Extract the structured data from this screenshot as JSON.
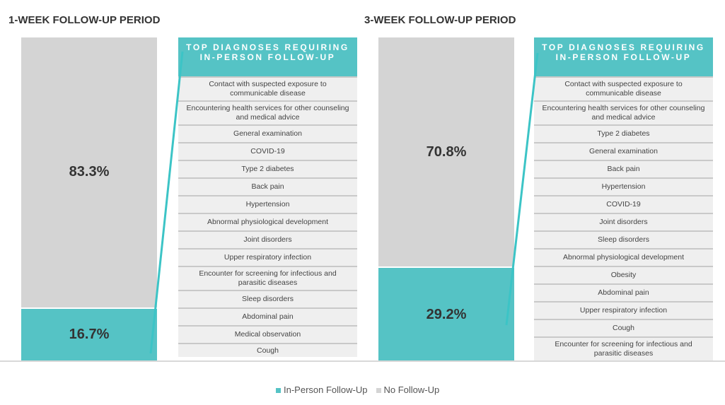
{
  "chart_data": [
    {
      "type": "bar",
      "stacked": true,
      "title": "1-WEEK FOLLOW-UP PERIOD",
      "categories": [
        "1-Week"
      ],
      "series": [
        {
          "name": "In-Person Follow-Up",
          "values": [
            16.7
          ],
          "label": "16.7%"
        },
        {
          "name": "No Follow-Up",
          "values": [
            83.3
          ],
          "label": "83.3%"
        }
      ],
      "table": {
        "header": "TOP DIAGNOSES REQUIRING IN-PERSON FOLLOW-UP",
        "rows": [
          "Contact with suspected exposure to communicable disease",
          "Encountering health services for other counseling and medical advice",
          "General examination",
          "COVID-19",
          "Type 2 diabetes",
          "Back pain",
          "Hypertension",
          "Abnormal physiological development",
          "Joint disorders",
          "Upper respiratory infection",
          "Encounter for screening for infectious and parasitic diseases",
          "Sleep disorders",
          "Abdominal pain",
          "Medical observation",
          "Cough"
        ]
      }
    },
    {
      "type": "bar",
      "stacked": true,
      "title": "3-WEEK FOLLOW-UP PERIOD",
      "categories": [
        "3-Week"
      ],
      "series": [
        {
          "name": "In-Person Follow-Up",
          "values": [
            29.2
          ],
          "label": "29.2%"
        },
        {
          "name": "No Follow-Up",
          "values": [
            70.8
          ],
          "label": "70.8%"
        }
      ],
      "table": {
        "header": "TOP DIAGNOSES REQUIRING IN-PERSON FOLLOW-UP",
        "rows": [
          "Contact with suspected exposure to communicable disease",
          "Encountering health services for other counseling and medical advice",
          "Type 2 diabetes",
          "General examination",
          "Back pain",
          "Hypertension",
          "COVID-19",
          "Joint disorders",
          "Sleep disorders",
          "Abnormal physiological development",
          "Obesity",
          "Abdominal pain",
          "Upper respiratory infection",
          "Cough",
          "Encounter for screening for infectious and parasitic diseases"
        ]
      }
    }
  ],
  "legend": [
    {
      "label": "In-Person Follow-Up",
      "color": "#55c3c5"
    },
    {
      "label": "No Follow-Up",
      "color": "#d4d4d4"
    }
  ],
  "colors": {
    "accent": "#55c3c5",
    "gray": "#d4d4d4"
  }
}
